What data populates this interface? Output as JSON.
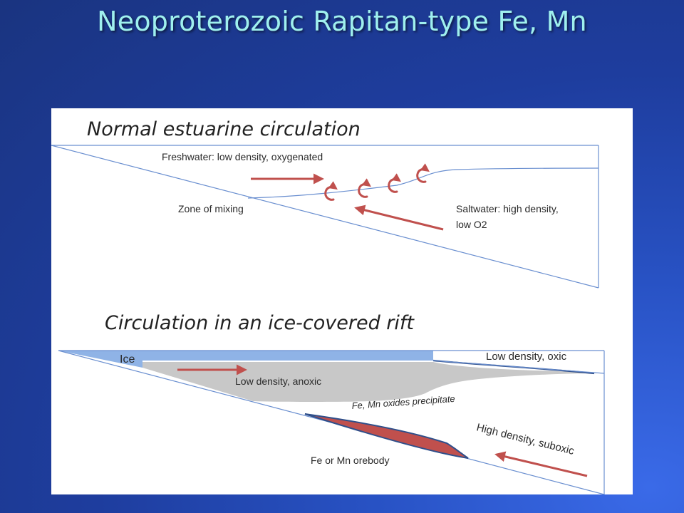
{
  "slide": {
    "title": "Neoproterozoic Rapitan-type Fe, Mn"
  },
  "top_diagram": {
    "heading": "Normal estuarine circulation",
    "freshwater_label": "Freshwater: low density, oxygenated",
    "mixing_label": "Zone of mixing",
    "saltwater_label_line1": "Saltwater:  high density,",
    "saltwater_label_line2": "low  O2"
  },
  "bottom_diagram": {
    "heading": "Circulation in an ice-covered rift",
    "ice_label": "Ice",
    "oxic_label": "Low density, oxic",
    "anoxic_label": "Low density, anoxic",
    "precipitate_label": "Fe, Mn oxides precipitate",
    "suboxic_label": "High density, suboxic",
    "orebody_label": "Fe or Mn orebody"
  },
  "colors": {
    "title_text": "#9ff0ee",
    "background": "#1e3d9e",
    "outline": "#6a8fd0",
    "arrow": "#c0504d",
    "ice": "#8fb3e6",
    "anoxic_water": "#c8c8c8",
    "orebody": "#c0504d",
    "orebody_edge": "#2f4f8a"
  }
}
